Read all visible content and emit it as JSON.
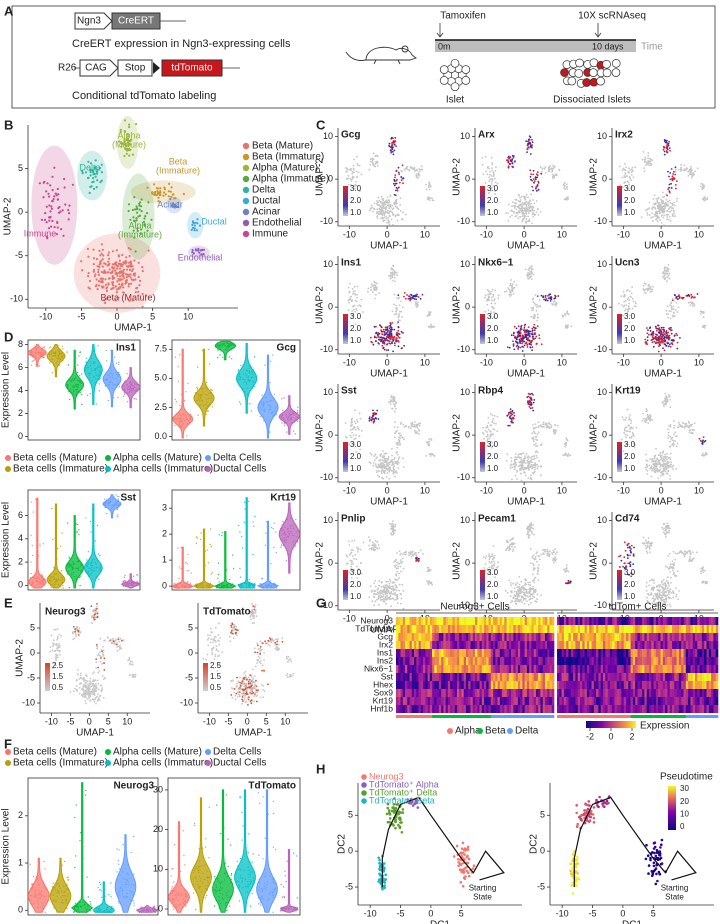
{
  "panel_labels": [
    "A",
    "B",
    "C",
    "D",
    "E",
    "F",
    "G",
    "H"
  ],
  "panel_a": {
    "ngn3": "Ngn3",
    "creert": "CreERT",
    "caption1": "CreERT expression in Ngn3-expressing cells",
    "r26": "R26",
    "cag": "CAG",
    "stop": "Stop",
    "tdtomato": "tdTomato",
    "caption2": "Conditional tdTomato labeling",
    "tamoxifen": "Tamoxifen",
    "scrnaseq": "10X scRNAseq",
    "t0": "0m",
    "t1": "10 days",
    "time": "Time",
    "islet": "Islet",
    "dissociated": "Dissociated Islets"
  },
  "panel_b": {
    "x_label": "UMAP-1",
    "y_label": "UMAP-2",
    "xlim": [
      -12.5,
      17
    ],
    "ylim": [
      -11,
      10
    ],
    "xticks": [
      -10,
      -5,
      0,
      5,
      10
    ],
    "yticks": [
      -10,
      -5,
      0,
      5
    ],
    "legend": [
      {
        "name": "Beta (Mature)",
        "color": "#e8736c"
      },
      {
        "name": "Beta (Immature)",
        "color": "#c8962c"
      },
      {
        "name": "Alpha (Mature)",
        "color": "#9bb43a"
      },
      {
        "name": "Alpha (Immature)",
        "color": "#5aa83a"
      },
      {
        "name": "Delta",
        "color": "#2fb3a0"
      },
      {
        "name": "Ductal",
        "color": "#3ca8d8"
      },
      {
        "name": "Acinar",
        "color": "#6b83c9"
      },
      {
        "name": "Endothelial",
        "color": "#8e5bb8"
      },
      {
        "name": "Immune",
        "color": "#c9478f"
      }
    ],
    "cluster_labels": [
      [
        "Alpha",
        "(Mature)"
      ],
      [
        "Beta",
        "(Immature)"
      ],
      [
        "Delta"
      ],
      [
        "Acinar"
      ],
      [
        "Ductal"
      ],
      [
        "Alpha",
        "(Immature)"
      ],
      [
        "Endothelial"
      ],
      [
        "Immune"
      ],
      [
        "Beta (Mature)"
      ]
    ]
  },
  "panel_c": {
    "genes": [
      "Gcg",
      "Arx",
      "Irx2",
      "Ins1",
      "Nkx6−1",
      "Ucn3",
      "Sst",
      "Rbp4",
      "Krt19",
      "Pnlip",
      "Pecam1",
      "Cd74"
    ],
    "x_label": "UMAP-1",
    "y_label": "UMAP-2",
    "xlim": [
      -13,
      14
    ],
    "ylim": [
      -11,
      12
    ],
    "xticks": [
      -10,
      0,
      10
    ],
    "yticks": [
      -10,
      0,
      10
    ],
    "colorbar": [
      "3.0",
      "2.0",
      "1.0"
    ]
  },
  "panel_d": {
    "y_label": "Expression Level",
    "legend": [
      {
        "name": "Beta cells (Mature)",
        "color": "#f8766d"
      },
      {
        "name": "Beta cells (Immature)",
        "color": "#b79f00"
      },
      {
        "name": "Alpha cells  (Mature)",
        "color": "#00ba38"
      },
      {
        "name": "Alpha cells (Immature)",
        "color": "#00bfc4"
      },
      {
        "name": "Delta Cells",
        "color": "#619cff"
      },
      {
        "name": "Ductal Cells",
        "color": "#b963b9"
      }
    ],
    "plots": [
      {
        "gene": "Ins1",
        "ylim": [
          -0.3,
          8.4
        ],
        "yticks": [
          0,
          2,
          4,
          6,
          8
        ]
      },
      {
        "gene": "Gcg",
        "ylim": [
          -0.3,
          8.3
        ],
        "yticks": [
          {
            "value": 0,
            "label": "0.0"
          },
          {
            "value": 2.5,
            "label": "2.5"
          },
          {
            "value": 5,
            "label": "5.0"
          },
          {
            "value": 7.5,
            "label": "7.5"
          }
        ]
      },
      {
        "gene": "Sst",
        "ylim": [
          -0.4,
          8.2
        ],
        "yticks": [
          0,
          2,
          4,
          6
        ]
      },
      {
        "gene": "Krt19",
        "ylim": [
          -0.15,
          3.7
        ],
        "yticks": [
          0,
          1,
          2,
          3
        ]
      }
    ]
  },
  "panel_e": {
    "genes": [
      "Neurog3",
      "TdTomato"
    ],
    "x_label": "UMAP-1",
    "y_label": "UMAP-2",
    "xlim": [
      -13,
      16
    ],
    "ylim": [
      -12,
      10
    ],
    "xticks": [
      -10,
      -5,
      0,
      5,
      10
    ],
    "yticks": [
      -10,
      -5,
      0,
      5
    ],
    "colorbar": [
      "2.5",
      "1.5",
      "0.5"
    ]
  },
  "panel_f": {
    "y_label": "Expression Level",
    "plots": [
      {
        "gene": "Neurog3",
        "ylim": [
          -0.1,
          2.8
        ],
        "yticks": [
          0,
          1,
          2
        ]
      },
      {
        "gene": "TdTomato",
        "ylim": [
          -1.5,
          33
        ],
        "yticks": [
          0,
          10,
          20,
          30
        ]
      }
    ]
  },
  "panel_g": {
    "headers": [
      "Neurog3+ Cells",
      "tdTom+ Cells"
    ],
    "genes": [
      "Neurog3",
      "TdTomato",
      "Gcg",
      "Irx2",
      "Ins1",
      "Ins2",
      "Nkx6−1",
      "Sst",
      "Hhex",
      "Sox9",
      "Krt19",
      "Hnf1b"
    ],
    "groups": [
      {
        "name": "Alpha",
        "color": "#f8766d"
      },
      {
        "name": "Beta",
        "color": "#00ba38"
      },
      {
        "name": "Delta",
        "color": "#619cff"
      }
    ],
    "colorbar_ticks": [
      -2,
      0,
      2
    ],
    "colorbar_label": "Expression"
  },
  "panel_h": {
    "legend": [
      {
        "name": "Neurog3",
        "color": "#f8766d"
      },
      {
        "name": "TdTomato⁺ Alpha",
        "color": "#8b5fbf"
      },
      {
        "name": "TdTomato⁺ Delta",
        "color": "#5aa02c"
      },
      {
        "name": "TdTomato⁺ Beta",
        "color": "#1fb4c4"
      }
    ],
    "x_label": "DC1",
    "y_label": "DC2",
    "xlim": [
      -12,
      15
    ],
    "ylim": [
      -7.5,
      9.5
    ],
    "xticks": [
      -10,
      -5,
      0,
      5
    ],
    "yticks": [
      -5,
      0,
      5
    ],
    "annotation": [
      "Starting",
      "State"
    ],
    "pseudotime_label": "Pseudotime",
    "pseudotime_ticks": [
      30,
      20,
      10,
      0
    ]
  }
}
